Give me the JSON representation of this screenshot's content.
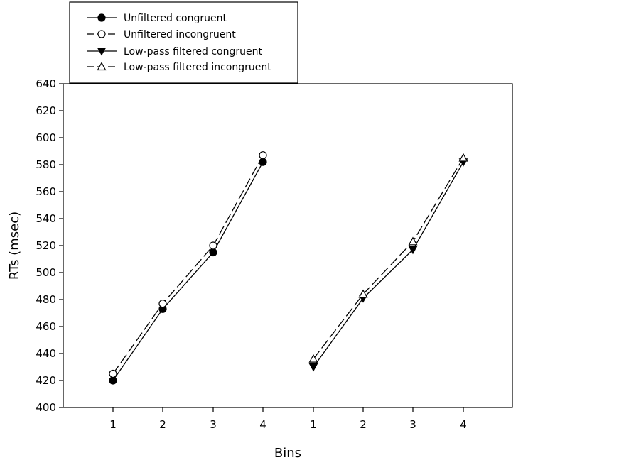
{
  "chart_data": {
    "type": "line",
    "xlabel": "Bins",
    "ylabel": "RTs (msec)",
    "ylim": [
      400,
      640
    ],
    "y_ticks": [
      400,
      420,
      440,
      460,
      480,
      500,
      520,
      540,
      560,
      580,
      600,
      620,
      640
    ],
    "x_tick_labels": [
      "1",
      "2",
      "3",
      "4",
      "1",
      "2",
      "3",
      "4"
    ],
    "grid": false,
    "legend_position": "top-left, above plot",
    "series": [
      {
        "name": "Unfiltered congruent",
        "marker": "filled-circle",
        "line": "solid",
        "group": 1,
        "x": [
          1,
          2,
          3,
          4
        ],
        "values": [
          420,
          473,
          515,
          582
        ]
      },
      {
        "name": "Unfiltered incongruent",
        "marker": "open-circle",
        "line": "dashed",
        "group": 1,
        "x": [
          1,
          2,
          3,
          4
        ],
        "values": [
          425,
          477,
          520,
          587
        ]
      },
      {
        "name": "Low-pass filtered congruent",
        "marker": "filled-triangle-down",
        "line": "solid",
        "group": 2,
        "x": [
          1,
          2,
          3,
          4
        ],
        "values": [
          430,
          481,
          517,
          582
        ]
      },
      {
        "name": "Low-pass filtered incongruent",
        "marker": "open-triangle-up",
        "line": "dashed",
        "group": 2,
        "x": [
          1,
          2,
          3,
          4
        ],
        "values": [
          436,
          484,
          523,
          585
        ]
      }
    ]
  }
}
